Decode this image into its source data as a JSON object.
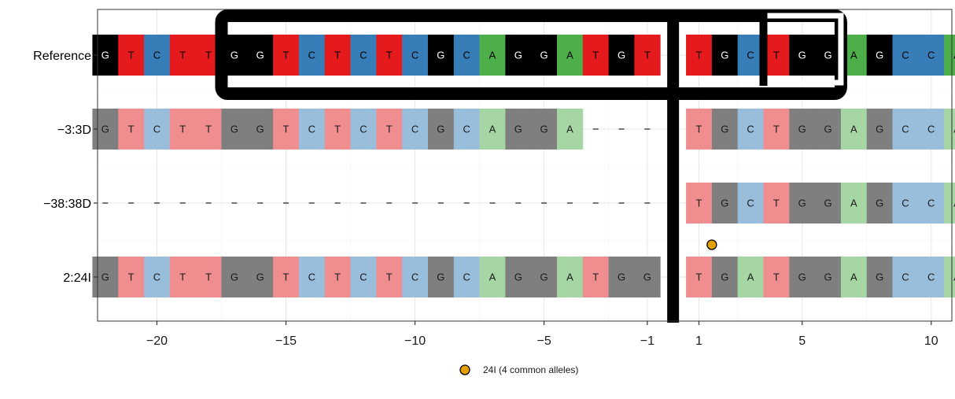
{
  "chart_data": {
    "type": "heatmap",
    "title": "",
    "xlabel": "",
    "ylabel": "",
    "xlim": [
      -22.3,
      10.8
    ],
    "x_ticks": [
      {
        "value": -20,
        "label": "−20"
      },
      {
        "value": -15,
        "label": "−15"
      },
      {
        "value": -10,
        "label": "−10"
      },
      {
        "value": -5,
        "label": "−5"
      },
      {
        "value": -1,
        "label": "−1"
      },
      {
        "value": 1,
        "label": "1"
      },
      {
        "value": 5,
        "label": "5"
      },
      {
        "value": 10,
        "label": "10"
      }
    ],
    "positions": [
      -22,
      -21,
      -20,
      -19,
      -18,
      -17,
      -16,
      -15,
      -14,
      -13,
      -12,
      -11,
      -10,
      -9,
      -8,
      -7,
      -6,
      -5,
      -4,
      -3,
      -2,
      -1,
      1,
      2,
      3,
      4,
      5,
      6,
      7,
      8,
      9,
      10,
      11
    ],
    "rows": [
      {
        "label": "Reference",
        "sequence": "GTCTTGGTCTCTCGCAGGATGTTGCTGGAGCCA",
        "highlighted": true
      },
      {
        "label": "−3:3D",
        "sequence": "GTCTTGGTCTCTCGCAGGA---TGCTGGAGCCA",
        "highlighted": false
      },
      {
        "label": "−38:38D",
        "sequence": "----------------------TGCTGGAGCCA",
        "highlighted": false
      },
      {
        "label": "2:24I",
        "sequence": "GTCTTGGTCTCTCGCAGGATGGTGATGGAGCCA",
        "highlighted": false
      }
    ],
    "insertions": [
      {
        "x": 1.5,
        "row_between": [
          "−38:38D",
          "2:24I"
        ],
        "group": "24I (4 common alleles)"
      }
    ],
    "guide_box": {
      "x_start": -17,
      "x_end": 6
    },
    "pam_box": {
      "x_start": 4,
      "x_end": 6
    },
    "cut_site": 0,
    "grid": true,
    "legend": {
      "position": "bottom",
      "entries": [
        {
          "label": "24I (4 common alleles)",
          "color": "#E69F00"
        }
      ]
    },
    "colors": {
      "A": {
        "full": "#4DAF4A",
        "faded": "#A6D6A3"
      },
      "C": {
        "full": "#377EB8",
        "faded": "#98BEDC"
      },
      "G": {
        "full": "#000000",
        "faded": "#7F7F7F"
      },
      "T": {
        "full": "#E41A1C",
        "faded": "#F08E8F"
      }
    }
  }
}
